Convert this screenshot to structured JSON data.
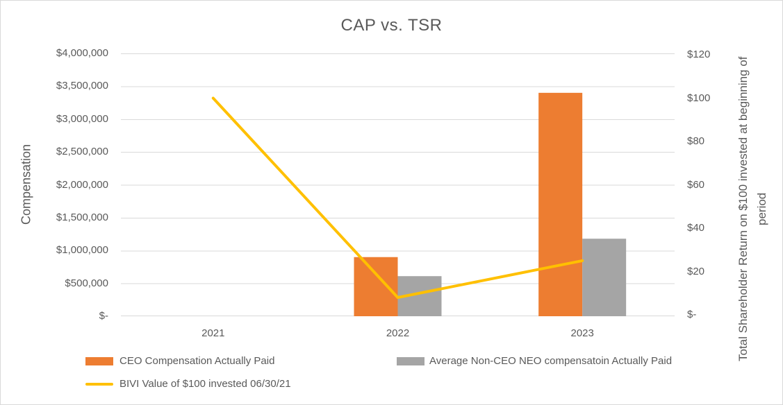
{
  "chart": {
    "title": "CAP vs. TSR",
    "left_axis": {
      "title": "Compensation",
      "ticks": [
        "$4,000,000",
        "$3,500,000",
        "$3,000,000",
        "$2,500,000",
        "$2,000,000",
        "$1,500,000",
        "$1,000,000",
        "$500,000",
        "$-"
      ]
    },
    "right_axis": {
      "title": "Total Shareholder Return on $100 invested at beginning of period",
      "ticks": [
        "$120",
        "$100",
        "$80",
        "$60",
        "$40",
        "$20",
        "$-"
      ]
    },
    "x_axis": {
      "labels": [
        "2021",
        "2022",
        "2023"
      ]
    },
    "colors": {
      "ceo_bar": "#ED7D31",
      "neo_bar": "#A5A5A5",
      "tsr_line": "#FFC000",
      "text": "#595959",
      "gridline": "#D9D9D9"
    }
  },
  "chart_data": {
    "type": "combo",
    "title": "CAP vs. TSR",
    "categories": [
      "2021",
      "2022",
      "2023"
    ],
    "series": [
      {
        "name": "CEO Compensation Actually Paid",
        "type": "bar",
        "axis": "left",
        "color": "#ED7D31",
        "values": [
          null,
          900000,
          3400000
        ]
      },
      {
        "name": "Average Non-CEO NEO compensatoin Actually Paid",
        "type": "bar",
        "axis": "left",
        "color": "#A5A5A5",
        "values": [
          null,
          610000,
          1180000
        ]
      },
      {
        "name": "BIVI Value of $100 invested 06/30/21",
        "type": "line",
        "axis": "right",
        "color": "#FFC000",
        "values": [
          100,
          8,
          25
        ]
      }
    ],
    "left_ylabel": "Compensation",
    "right_ylabel": "Total Shareholder Return on $100 invested at beginning of period",
    "left_ylim": [
      0,
      4000000
    ],
    "left_tick_step": 500000,
    "right_ylim": [
      0,
      120
    ],
    "right_tick_step": 20,
    "grid": true,
    "legend_position": "bottom"
  }
}
